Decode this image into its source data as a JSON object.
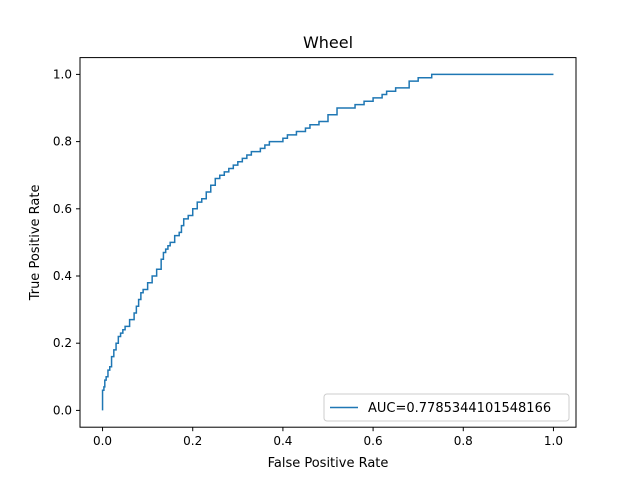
{
  "chart_data": {
    "type": "line",
    "title": "Wheel",
    "xlabel": "False Positive Rate",
    "ylabel": "True Positive Rate",
    "xlim": [
      -0.05,
      1.05
    ],
    "ylim": [
      -0.05,
      1.05
    ],
    "xticks": [
      "0.0",
      "0.2",
      "0.4",
      "0.6",
      "0.8",
      "1.0"
    ],
    "yticks": [
      "0.0",
      "0.2",
      "0.4",
      "0.6",
      "0.8",
      "1.0"
    ],
    "xtick_values": [
      0.0,
      0.2,
      0.4,
      0.6,
      0.8,
      1.0
    ],
    "ytick_values": [
      0.0,
      0.2,
      0.4,
      0.6,
      0.8,
      1.0
    ],
    "grid": false,
    "legend_position": "lower-right",
    "series_color": "#1f77b4",
    "series": [
      {
        "name": "AUC=0.7785344101548166",
        "x": [
          0.0,
          0.0,
          0.003,
          0.005,
          0.008,
          0.012,
          0.016,
          0.02,
          0.025,
          0.03,
          0.035,
          0.04,
          0.045,
          0.05,
          0.06,
          0.07,
          0.075,
          0.08,
          0.085,
          0.09,
          0.1,
          0.11,
          0.12,
          0.13,
          0.135,
          0.14,
          0.145,
          0.15,
          0.16,
          0.17,
          0.175,
          0.18,
          0.19,
          0.2,
          0.21,
          0.22,
          0.23,
          0.24,
          0.25,
          0.26,
          0.27,
          0.28,
          0.29,
          0.3,
          0.31,
          0.32,
          0.33,
          0.35,
          0.36,
          0.37,
          0.38,
          0.4,
          0.41,
          0.43,
          0.45,
          0.46,
          0.48,
          0.5,
          0.52,
          0.56,
          0.58,
          0.6,
          0.62,
          0.63,
          0.65,
          0.68,
          0.7,
          0.72,
          0.73,
          0.75,
          0.8,
          1.0
        ],
        "y": [
          0.0,
          0.06,
          0.07,
          0.09,
          0.1,
          0.12,
          0.13,
          0.16,
          0.18,
          0.2,
          0.22,
          0.23,
          0.24,
          0.25,
          0.27,
          0.29,
          0.31,
          0.33,
          0.35,
          0.36,
          0.38,
          0.4,
          0.42,
          0.45,
          0.47,
          0.48,
          0.49,
          0.5,
          0.52,
          0.53,
          0.55,
          0.57,
          0.58,
          0.6,
          0.62,
          0.63,
          0.65,
          0.67,
          0.69,
          0.7,
          0.71,
          0.72,
          0.73,
          0.74,
          0.75,
          0.76,
          0.77,
          0.78,
          0.79,
          0.8,
          0.8,
          0.81,
          0.82,
          0.83,
          0.84,
          0.85,
          0.86,
          0.88,
          0.9,
          0.91,
          0.92,
          0.93,
          0.94,
          0.95,
          0.96,
          0.98,
          0.99,
          0.99,
          1.0,
          1.0,
          1.0,
          1.0
        ]
      }
    ]
  }
}
